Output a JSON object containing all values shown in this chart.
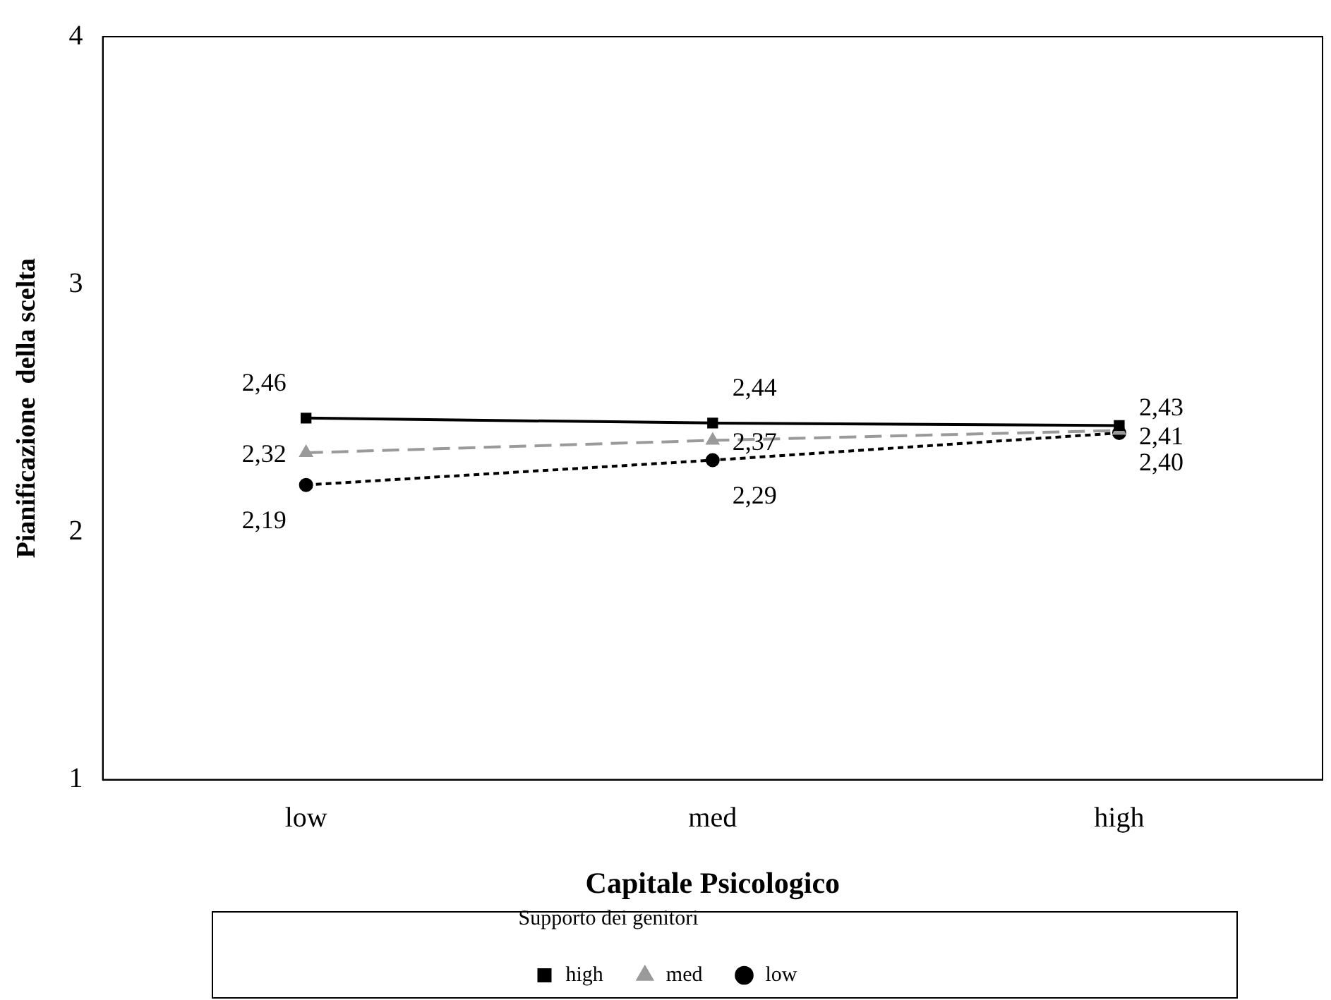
{
  "chart_data": {
    "type": "line",
    "xlabel": "Capitale Psicologico",
    "ylabel": "Pianificazione  della scelta",
    "legend_title": "Supporto dei genitori",
    "categories": [
      "low",
      "med",
      "high"
    ],
    "ylim": [
      1,
      4
    ],
    "yticks": [
      1,
      2,
      3,
      4
    ],
    "grid": false,
    "legend": "bottom",
    "series": [
      {
        "name": "high",
        "color": "#000000",
        "marker": "square",
        "line_style": "solid",
        "values": [
          2.46,
          2.44,
          2.43
        ],
        "value_labels": [
          "2,46",
          "2,44",
          "2,43"
        ]
      },
      {
        "name": "med",
        "color": "#9a9a9a",
        "marker": "triangle",
        "line_style": "dashed",
        "values": [
          2.32,
          2.37,
          2.41
        ],
        "value_labels": [
          "2,32",
          "2,37",
          "2,41"
        ]
      },
      {
        "name": "low",
        "color": "#000000",
        "marker": "circle",
        "line_style": "dotted",
        "values": [
          2.19,
          2.29,
          2.4
        ],
        "value_labels": [
          "2,19",
          "2,29",
          "2,40"
        ]
      }
    ]
  }
}
